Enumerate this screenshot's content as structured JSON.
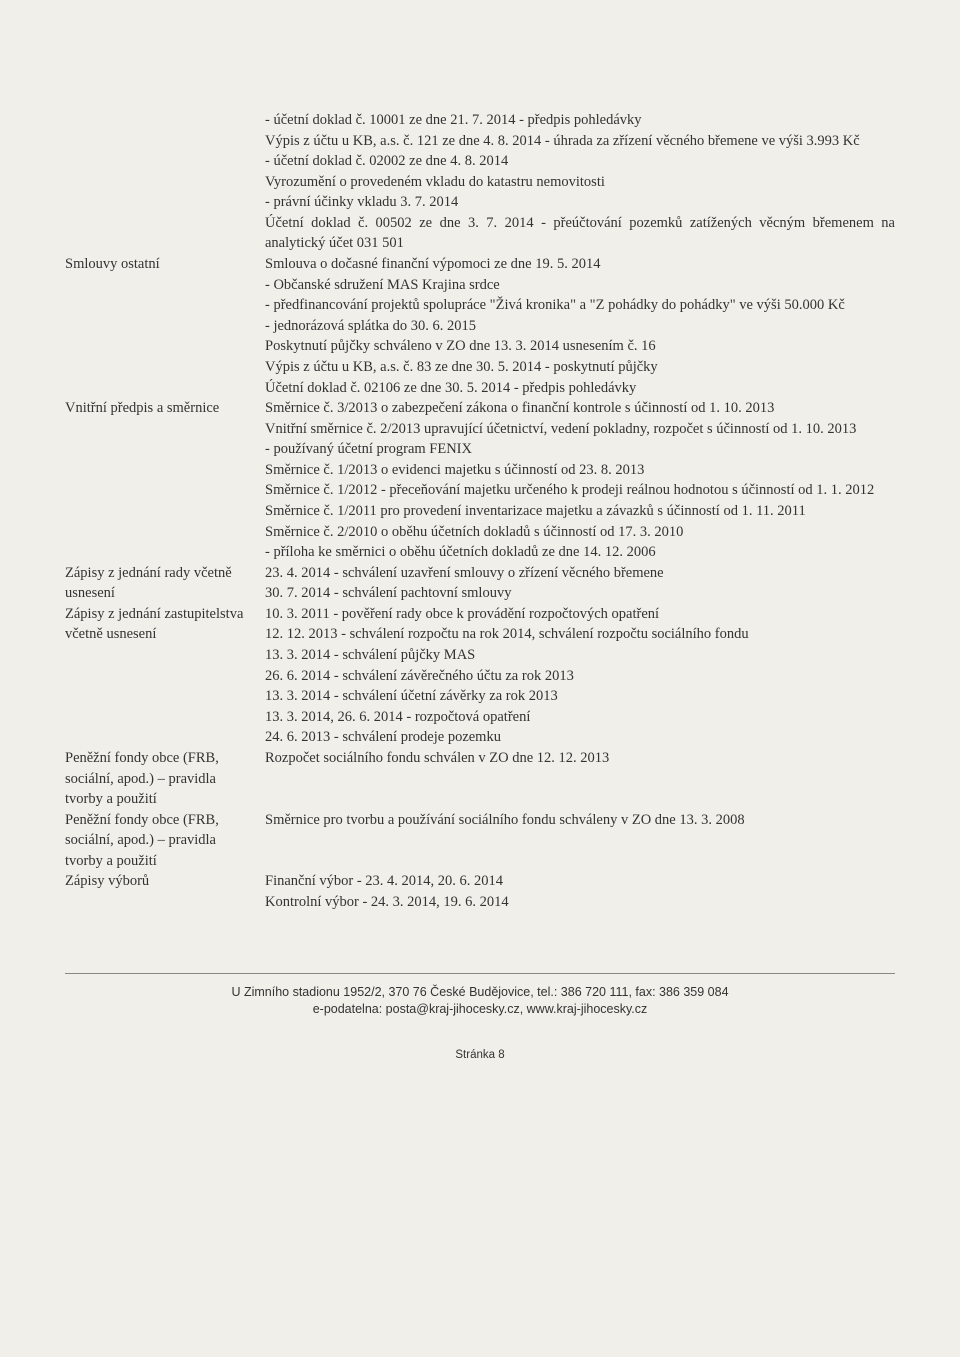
{
  "rows": [
    {
      "label": "",
      "body": "- účetní doklad č. 10001 ze dne 21. 7. 2014 - předpis pohledávky\nVýpis z účtu u KB, a.s. č. 121 ze dne 4. 8. 2014 - úhrada za zřízení věcného břemene ve výši 3.993 Kč\n- účetní doklad č. 02002 ze dne 4. 8. 2014\nVyrozumění o provedeném vkladu do katastru nemovitosti\n- právní účinky vkladu 3. 7. 2014\nÚčetní doklad č. 00502 ze dne 3. 7. 2014 - přeúčtování pozemků zatížených věcným břemenem na analytický účet 031 501"
    },
    {
      "label": "Smlouvy ostatní",
      "body": "Smlouva o dočasné finanční výpomoci ze dne 19. 5. 2014\n- Občanské sdružení MAS Krajina srdce\n- předfinancování projektů spolupráce \"Živá kronika\" a \"Z pohádky do pohádky\" ve výši 50.000 Kč\n- jednorázová splátka do 30. 6. 2015\nPoskytnutí půjčky schváleno v ZO dne 13. 3. 2014 usnesením č. 16\nVýpis z účtu u KB, a.s. č. 83 ze dne 30. 5. 2014 - poskytnutí půjčky\nÚčetní doklad č. 02106 ze dne 30. 5. 2014 - předpis pohledávky"
    },
    {
      "label": "Vnitřní předpis a směrnice",
      "body": "Směrnice č. 3/2013 o zabezpečení zákona o finanční kontrole s účinností od 1. 10. 2013\nVnitřní směrnice č. 2/2013 upravující účetnictví, vedení pokladny, rozpočet s účinností od 1. 10. 2013\n- používaný účetní program FENIX\nSměrnice č. 1/2013 o evidenci majetku s účinností od 23. 8. 2013\nSměrnice č. 1/2012 - přeceňování majetku určeného k prodeji reálnou hodnotou s účinností od 1. 1. 2012\nSměrnice č. 1/2011 pro provedení inventarizace majetku a závazků s účinností od 1. 11. 2011\nSměrnice č. 2/2010 o oběhu účetních dokladů s účinností od 17. 3. 2010\n- příloha ke směrnici o oběhu účetních dokladů ze dne 14. 12. 2006"
    },
    {
      "label": "Zápisy z jednání rady včetně usnesení",
      "body": "23. 4. 2014 - schválení uzavření smlouvy o zřízení věcného břemene\n30. 7. 2014 - schválení pachtovní smlouvy"
    },
    {
      "label": "Zápisy z jednání zastupitelstva včetně usnesení",
      "body": "10. 3. 2011 - pověření rady obce k provádění rozpočtových opatření\n12. 12. 2013 - schválení rozpočtu na rok 2014, schválení rozpočtu sociálního fondu\n13. 3. 2014 - schválení půjčky MAS\n26. 6. 2014 - schválení závěrečného účtu za rok 2013\n13. 3. 2014 - schválení účetní závěrky za rok 2013\n13. 3. 2014, 26. 6. 2014 - rozpočtová opatření\n24. 6. 2013 - schválení prodeje pozemku"
    },
    {
      "label": "Peněžní fondy obce (FRB, sociální, apod.) – pravidla tvorby a použití",
      "body": "Rozpočet sociálního fondu schválen v ZO dne 12. 12. 2013"
    },
    {
      "label": "Peněžní fondy obce (FRB, sociální, apod.) – pravidla tvorby a použití",
      "body": "Směrnice pro tvorbu a používání sociálního fondu schváleny v ZO dne 13. 3. 2008"
    },
    {
      "label": "Zápisy výborů",
      "body": "Finanční výbor - 23. 4. 2014, 20. 6. 2014\nKontrolní výbor - 24. 3. 2014, 19. 6. 2014"
    }
  ],
  "footer_line1": "U Zimního stadionu 1952/2, 370 76 České Budějovice, tel.: 386 720 111, fax: 386 359 084",
  "footer_line2": "e-podatelna: posta@kraj-jihocesky.cz, www.kraj-jihocesky.cz",
  "page_number": "Stránka 8"
}
